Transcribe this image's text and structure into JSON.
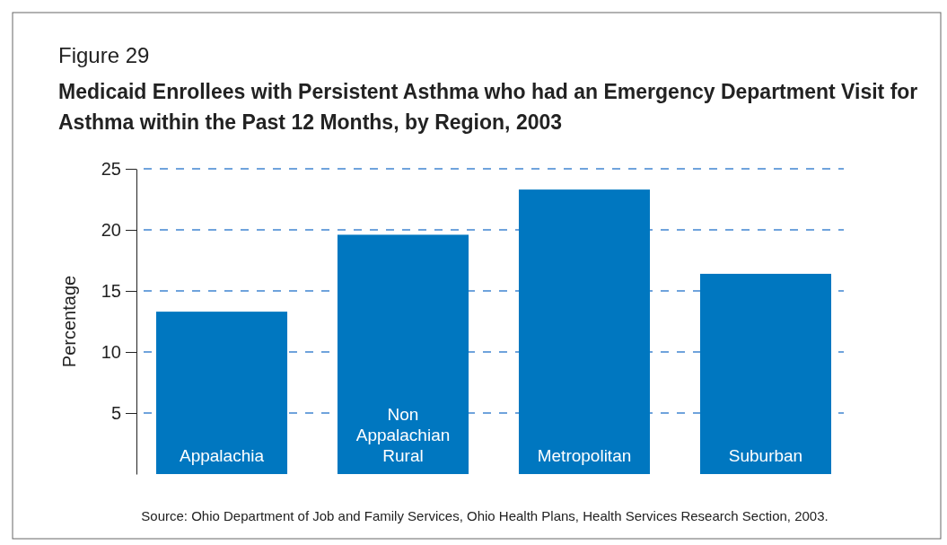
{
  "chart_data": {
    "type": "bar",
    "title": "Medicaid Enrollees with Persistent Asthma who had an Emergency Department Visit for Asthma within the Past 12 Months, by Region, 2003",
    "ylabel": "Percentage",
    "annotations": [
      "Figure 29",
      "Source:  Ohio Department of Job and Family Services, Ohio Health Plans, Health Services Research Section, 2003."
    ],
    "categories": [
      "Appalachia",
      "Non Appalachian Rural",
      "Metropolitan",
      "Suburban"
    ],
    "values": [
      13.3,
      19.6,
      23.3,
      16.4
    ],
    "color": "#0077c0",
    "ylim": [
      0,
      25
    ],
    "yticks": [
      5,
      10,
      15,
      20,
      25
    ],
    "grid": "y"
  }
}
